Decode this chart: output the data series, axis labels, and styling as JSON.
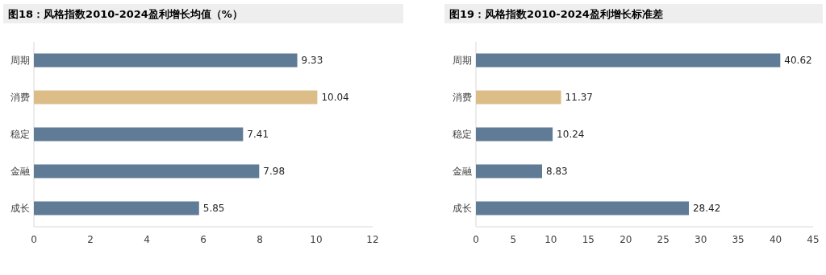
{
  "chart_data": [
    {
      "type": "bar",
      "orientation": "horizontal",
      "title": "图18：风格指数2010-2024盈利增长均值（%）",
      "categories": [
        "周期",
        "消费",
        "稳定",
        "金融",
        "成长"
      ],
      "values": [
        9.33,
        10.04,
        7.41,
        7.98,
        5.85
      ],
      "colors": [
        "#5f7b96",
        "#dcbd88",
        "#5f7b96",
        "#5f7b96",
        "#5f7b96"
      ],
      "xlim": [
        0,
        12
      ],
      "xticks": [
        0,
        2,
        4,
        6,
        8,
        10,
        12
      ],
      "data_labels": true
    },
    {
      "type": "bar",
      "orientation": "horizontal",
      "title": "图19：风格指数2010-2024盈利增长标准差",
      "categories": [
        "周期",
        "消费",
        "稳定",
        "金融",
        "成长"
      ],
      "values": [
        40.62,
        11.37,
        10.24,
        8.83,
        28.42
      ],
      "colors": [
        "#5f7b96",
        "#dcbd88",
        "#5f7b96",
        "#5f7b96",
        "#5f7b96"
      ],
      "xlim": [
        0,
        45
      ],
      "xticks": [
        0,
        5,
        10,
        15,
        20,
        25,
        30,
        35,
        40,
        45
      ],
      "data_labels": true
    }
  ]
}
